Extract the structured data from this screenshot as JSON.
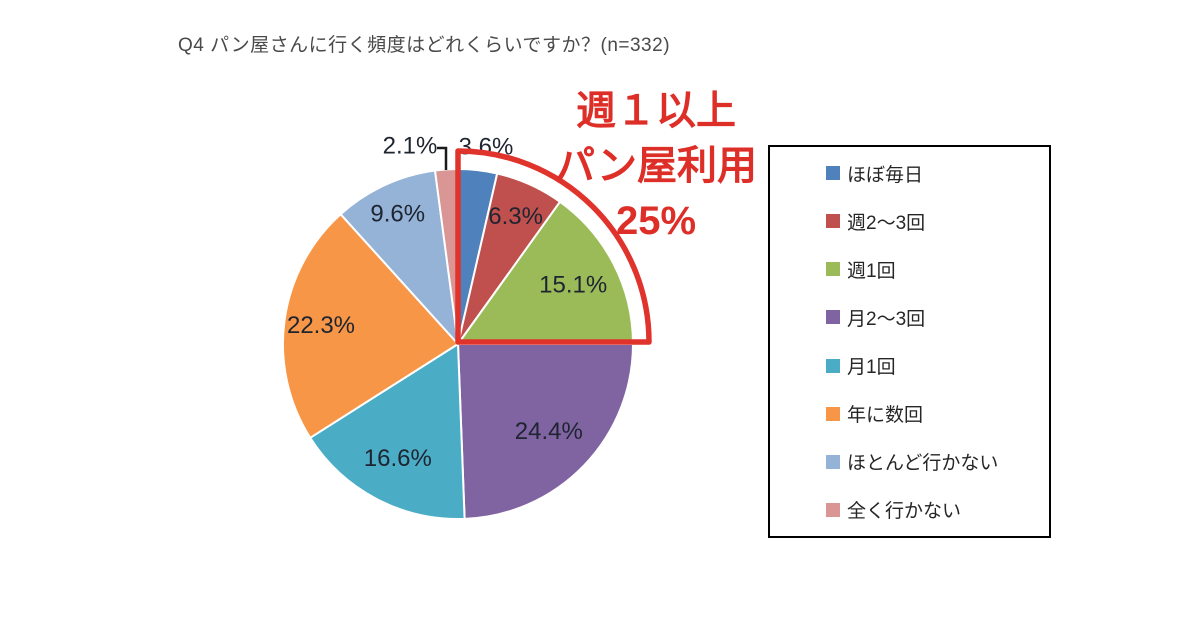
{
  "title": "Q4 パン屋さんに行く頻度はどれくらいですか？(n=332)",
  "annotation": {
    "lines": [
      "週１以上",
      "パン屋利用",
      "25%"
    ],
    "color": "#dd2f28"
  },
  "chart_data": {
    "type": "pie",
    "title": "Q4 パン屋さんに行く頻度はどれくらいですか？(n=332)",
    "sample_size": "n=332",
    "categories": [
      "ほぼ毎日",
      "週2～3回",
      "週1回",
      "月2～3回",
      "月1回",
      "年に数回",
      "ほとんど行かない",
      "全く行かない"
    ],
    "values": [
      3.6,
      6.3,
      15.1,
      24.4,
      16.6,
      22.3,
      9.6,
      2.1
    ],
    "labels": [
      "3.6%",
      "6.3%",
      "15.1%",
      "24.4%",
      "16.6%",
      "22.3%",
      "9.6%",
      "2.1%"
    ],
    "colors": [
      "#4f81bd",
      "#c0504d",
      "#9bbb59",
      "#8064a2",
      "#4bacc6",
      "#f79646",
      "#95b3d7",
      "#d99694"
    ],
    "start_angle_deg": 0,
    "direction": "clockwise",
    "legend_position": "right",
    "slice_border_color": "#ffffff",
    "label_color": "#1e2430",
    "highlight": {
      "slice_indexes": [
        0,
        1,
        2
      ],
      "total_label": "25%",
      "note": "週１以上パン屋利用",
      "outline_color": "#e0332c"
    }
  }
}
